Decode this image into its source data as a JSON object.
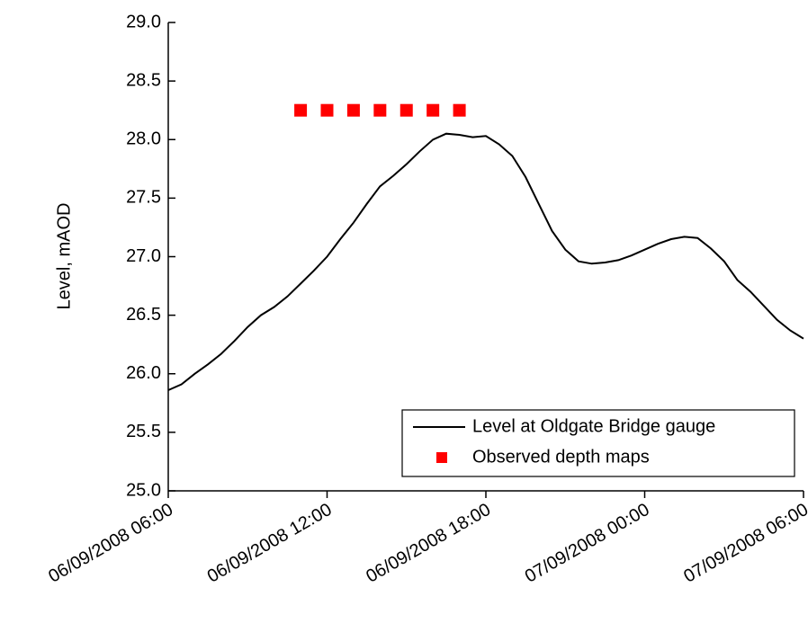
{
  "chart_data": {
    "type": "line",
    "ylabel": "Level, mAOD",
    "x": [
      "06/09/2008 06:00",
      "06/09/2008 06:30",
      "06/09/2008 07:00",
      "06/09/2008 07:30",
      "06/09/2008 08:00",
      "06/09/2008 08:30",
      "06/09/2008 09:00",
      "06/09/2008 09:30",
      "06/09/2008 10:00",
      "06/09/2008 10:30",
      "06/09/2008 11:00",
      "06/09/2008 11:30",
      "06/09/2008 12:00",
      "06/09/2008 12:30",
      "06/09/2008 13:00",
      "06/09/2008 13:30",
      "06/09/2008 14:00",
      "06/09/2008 14:30",
      "06/09/2008 15:00",
      "06/09/2008 15:30",
      "06/09/2008 16:00",
      "06/09/2008 16:30",
      "06/09/2008 17:00",
      "06/09/2008 17:30",
      "06/09/2008 18:00",
      "06/09/2008 18:30",
      "06/09/2008 19:00",
      "06/09/2008 19:30",
      "06/09/2008 20:00",
      "06/09/2008 20:30",
      "06/09/2008 21:00",
      "06/09/2008 21:30",
      "06/09/2008 22:00",
      "06/09/2008 22:30",
      "06/09/2008 23:00",
      "06/09/2008 23:30",
      "07/09/2008 00:00",
      "07/09/2008 00:30",
      "07/09/2008 01:00",
      "07/09/2008 01:30",
      "07/09/2008 02:00",
      "07/09/2008 02:30",
      "07/09/2008 03:00",
      "07/09/2008 03:30",
      "07/09/2008 04:00",
      "07/09/2008 04:30",
      "07/09/2008 05:00",
      "07/09/2008 05:30",
      "07/09/2008 06:00"
    ],
    "series": [
      {
        "name": "Level at Oldgate Bridge gauge",
        "color": "#000000",
        "values": [
          25.86,
          25.91,
          26.0,
          26.08,
          26.17,
          26.28,
          26.4,
          26.5,
          26.57,
          26.66,
          26.77,
          26.88,
          27.0,
          27.15,
          27.29,
          27.45,
          27.6,
          27.69,
          27.79,
          27.9,
          28.0,
          28.05,
          28.04,
          28.02,
          28.03,
          27.96,
          27.86,
          27.68,
          27.45,
          27.22,
          27.06,
          26.96,
          26.94,
          26.95,
          26.97,
          27.01,
          27.06,
          27.11,
          27.15,
          27.17,
          27.16,
          27.07,
          26.96,
          26.8,
          26.7,
          26.58,
          26.46,
          26.37,
          26.3
        ]
      },
      {
        "name": "Observed depth maps",
        "color": "#ff0000",
        "marker": "square",
        "x": [
          "06/09/2008 11:00",
          "06/09/2008 12:00",
          "06/09/2008 13:00",
          "06/09/2008 14:00",
          "06/09/2008 15:00",
          "06/09/2008 16:00",
          "06/09/2008 17:00"
        ],
        "values": [
          28.25,
          28.25,
          28.25,
          28.25,
          28.25,
          28.25,
          28.25
        ]
      }
    ],
    "xlim": [
      "06/09/2008 06:00",
      "07/09/2008 06:00"
    ],
    "xticks": [
      "06/09/2008 06:00",
      "06/09/2008 12:00",
      "06/09/2008 18:00",
      "07/09/2008 00:00",
      "07/09/2008 06:00"
    ],
    "ylim": [
      25,
      29
    ],
    "yticks": [
      {
        "value": 25,
        "label": "25.0"
      },
      {
        "value": 25.5,
        "label": "25.5"
      },
      {
        "value": 26,
        "label": "26.0"
      },
      {
        "value": 26.5,
        "label": "26.5"
      },
      {
        "value": 27,
        "label": "27.0"
      },
      {
        "value": 27.5,
        "label": "27.5"
      },
      {
        "value": 28,
        "label": "28.0"
      },
      {
        "value": 28.5,
        "label": "28.5"
      },
      {
        "value": 29,
        "label": "29.0"
      }
    ],
    "grid": false,
    "legend": "lower right"
  }
}
